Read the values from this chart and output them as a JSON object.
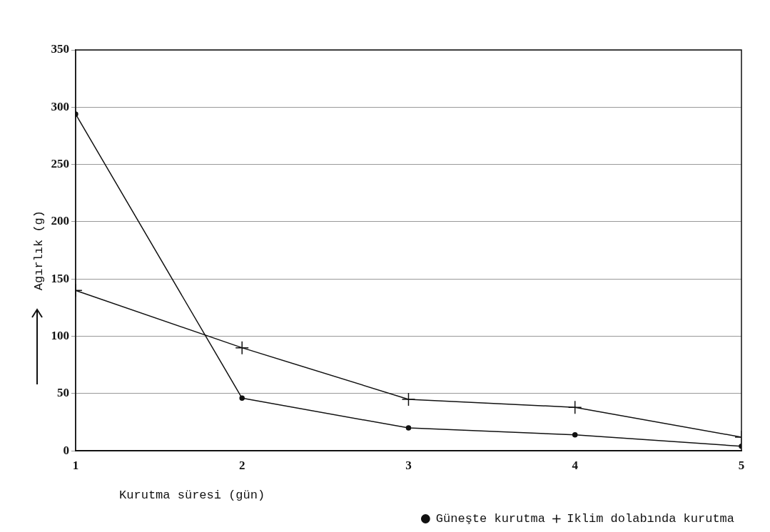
{
  "chart_data": {
    "type": "line",
    "xlabel": "Kurutma süresi (gün)",
    "ylabel": "Agırlık (g)",
    "x": [
      1,
      2,
      3,
      4,
      5
    ],
    "series": [
      {
        "name": "Güneşte kurutma",
        "color": "#111111",
        "values": [
          294,
          46,
          20,
          14,
          4
        ],
        "marker": "circle"
      },
      {
        "name": "Iklim dolabında kurutma",
        "color": "#111111",
        "values": [
          140,
          90,
          45,
          38,
          12
        ],
        "marker": "cross"
      }
    ],
    "xlim": [
      1,
      5
    ],
    "xticks": [
      1,
      2,
      3,
      4,
      5
    ],
    "ylim": [
      0,
      350
    ],
    "yticks": [
      0,
      50,
      100,
      150,
      200,
      250,
      300,
      350
    ],
    "grid": "y",
    "legend": "bottom right",
    "line_style": "solid"
  }
}
